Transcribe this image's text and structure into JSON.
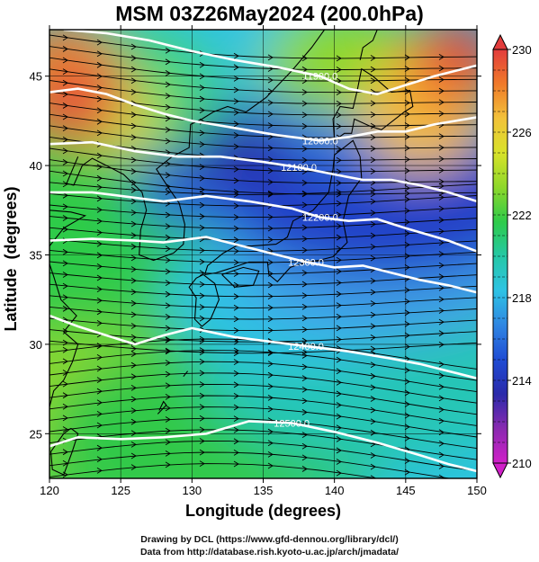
{
  "title": "MSM 03Z26May2024 (200.0hPa)",
  "xlabel": "Longitude (degrees)",
  "ylabel": "Latitude  (degrees)",
  "credits": {
    "line1": "Drawing by DCL (https://www.gfd-dennou.org/library/dcl/)",
    "line2": "Data from http://database.rish.kyoto-u.ac.jp/arch/jmadata/"
  },
  "map": {
    "lon_range": [
      120,
      150
    ],
    "lat_range": [
      22.5,
      47.6
    ],
    "lon_ticks": [
      120,
      125,
      130,
      135,
      140,
      145,
      150
    ],
    "lon_tick_labels": [
      "120",
      "125",
      "130",
      "135",
      "140",
      "145",
      "150"
    ],
    "lat_ticks": [
      25,
      30,
      35,
      40,
      45
    ],
    "lat_tick_labels": [
      "25",
      "30",
      "35",
      "40",
      "45"
    ],
    "grid": true
  },
  "colorbar": {
    "min": 210,
    "max": 230,
    "labels": [
      "230",
      "226",
      "222",
      "218",
      "214",
      "210"
    ],
    "label_values": [
      230,
      226,
      222,
      218,
      214,
      210
    ],
    "colors": [
      "#e23c3c",
      "#f07a2a",
      "#f2c23a",
      "#d8e22a",
      "#8ed82a",
      "#2ecb4a",
      "#25c8a6",
      "#2ec3e4",
      "#2f86e2",
      "#1f4cd4",
      "#2a2aaa",
      "#8a2ab0",
      "#d020c8"
    ]
  },
  "contours": [
    {
      "label": "11900.0",
      "points": [
        [
          121,
          47.6
        ],
        [
          124,
          47.4
        ],
        [
          127,
          47.0
        ],
        [
          130,
          46.4
        ],
        [
          133,
          45.9
        ],
        [
          136,
          45.5
        ],
        [
          139,
          45.0
        ],
        [
          141,
          44.3
        ],
        [
          143,
          44.0
        ],
        [
          145,
          44.5
        ],
        [
          147,
          45.0
        ],
        [
          150,
          45.6
        ]
      ]
    },
    {
      "label": "12000.0",
      "points": [
        [
          120,
          44.1
        ],
        [
          122,
          44.3
        ],
        [
          124,
          44.0
        ],
        [
          126,
          43.4
        ],
        [
          128,
          42.9
        ],
        [
          130,
          42.5
        ],
        [
          133,
          42.1
        ],
        [
          136,
          41.7
        ],
        [
          139,
          41.4
        ],
        [
          141,
          41.6
        ],
        [
          143,
          41.9
        ],
        [
          145,
          41.9
        ],
        [
          147,
          42.3
        ],
        [
          150,
          42.7
        ]
      ]
    },
    {
      "label": "12100.0",
      "points": [
        [
          120,
          41.2
        ],
        [
          123,
          41.3
        ],
        [
          126,
          40.8
        ],
        [
          129,
          40.5
        ],
        [
          132,
          40.5
        ],
        [
          135,
          40.2
        ],
        [
          137.5,
          39.9
        ],
        [
          140,
          39.5
        ],
        [
          142,
          39.2
        ],
        [
          144,
          39.2
        ],
        [
          146,
          38.9
        ],
        [
          148,
          38.5
        ],
        [
          150,
          38.0
        ]
      ]
    },
    {
      "label": "12200.0",
      "points": [
        [
          120,
          38.5
        ],
        [
          123,
          38.5
        ],
        [
          126,
          38.2
        ],
        [
          128,
          38.0
        ],
        [
          131,
          38.3
        ],
        [
          134,
          38.0
        ],
        [
          137,
          37.6
        ],
        [
          139,
          37.1
        ],
        [
          141,
          36.9
        ],
        [
          143,
          37.0
        ],
        [
          145,
          36.5
        ],
        [
          148,
          35.8
        ],
        [
          150,
          35.2
        ]
      ]
    },
    {
      "label": "12300.0",
      "points": [
        [
          120,
          35.8
        ],
        [
          123,
          35.9
        ],
        [
          126,
          35.8
        ],
        [
          128,
          35.7
        ],
        [
          131,
          36.0
        ],
        [
          134,
          35.4
        ],
        [
          136,
          35.0
        ],
        [
          138,
          34.6
        ],
        [
          140,
          34.3
        ],
        [
          142,
          34.4
        ],
        [
          144,
          34.0
        ],
        [
          146,
          33.6
        ],
        [
          148,
          33.3
        ],
        [
          150,
          32.9
        ]
      ]
    },
    {
      "label": "12400.0",
      "points": [
        [
          120,
          31.6
        ],
        [
          122,
          31.0
        ],
        [
          124,
          30.5
        ],
        [
          126,
          30.0
        ],
        [
          128,
          30.5
        ],
        [
          130,
          30.9
        ],
        [
          133,
          30.4
        ],
        [
          135,
          30.2
        ],
        [
          138,
          29.9
        ],
        [
          141,
          29.6
        ],
        [
          144,
          29.2
        ],
        [
          146,
          28.9
        ],
        [
          148,
          28.5
        ],
        [
          150,
          28.1
        ]
      ]
    },
    {
      "label": "12500.0",
      "points": [
        [
          120,
          24.3
        ],
        [
          122,
          24.8
        ],
        [
          125,
          24.7
        ],
        [
          128,
          24.8
        ],
        [
          131,
          25.0
        ],
        [
          134,
          25.7
        ],
        [
          137,
          25.6
        ],
        [
          140,
          25.1
        ],
        [
          143,
          24.5
        ],
        [
          146,
          23.8
        ],
        [
          148,
          23.3
        ],
        [
          150,
          22.9
        ]
      ]
    }
  ]
}
